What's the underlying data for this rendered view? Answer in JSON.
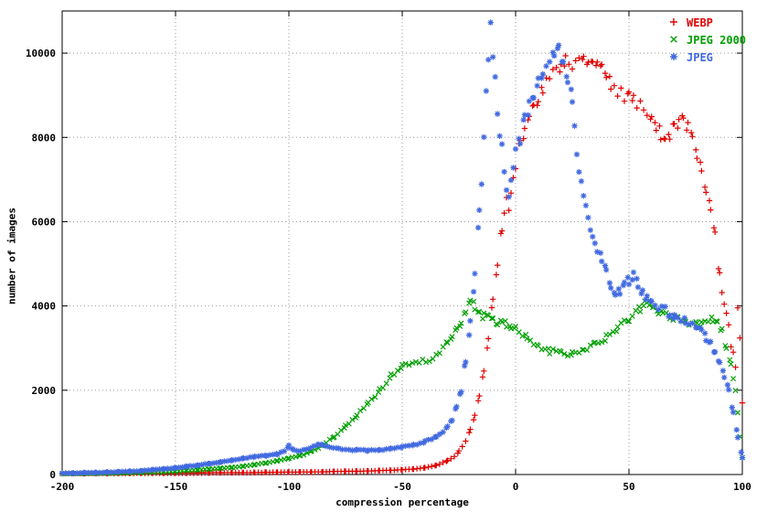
{
  "chart_data": {
    "type": "scatter",
    "title": "",
    "xlabel": "compression percentage",
    "ylabel": "number of images",
    "xlim": [
      -200,
      100
    ],
    "ylim": [
      0,
      11000
    ],
    "xticks": [
      -200,
      -150,
      -100,
      -50,
      0,
      50,
      100
    ],
    "yticks": [
      0,
      2000,
      4000,
      6000,
      8000,
      10000
    ],
    "grid": true,
    "grid_style": "dotted",
    "legend_position": "top-right",
    "series": [
      {
        "name": "WEBP",
        "color": "#e00000",
        "marker": "plus",
        "points": [
          [
            -200,
            25
          ],
          [
            -195,
            26
          ],
          [
            -190,
            27
          ],
          [
            -185,
            28
          ],
          [
            -180,
            29
          ],
          [
            -175,
            30
          ],
          [
            -170,
            31
          ],
          [
            -165,
            32
          ],
          [
            -160,
            33
          ],
          [
            -155,
            34
          ],
          [
            -150,
            35
          ],
          [
            -145,
            36
          ],
          [
            -140,
            38
          ],
          [
            -135,
            40
          ],
          [
            -130,
            42
          ],
          [
            -125,
            44
          ],
          [
            -120,
            46
          ],
          [
            -115,
            48
          ],
          [
            -110,
            50
          ],
          [
            -105,
            52
          ],
          [
            -100,
            55
          ],
          [
            -95,
            58
          ],
          [
            -90,
            62
          ],
          [
            -85,
            66
          ],
          [
            -80,
            70
          ],
          [
            -75,
            75
          ],
          [
            -70,
            80
          ],
          [
            -65,
            85
          ],
          [
            -60,
            90
          ],
          [
            -55,
            100
          ],
          [
            -50,
            110
          ],
          [
            -45,
            130
          ],
          [
            -40,
            165
          ],
          [
            -35,
            220
          ],
          [
            -30,
            330
          ],
          [
            -27,
            430
          ],
          [
            -25,
            550
          ],
          [
            -22,
            780
          ],
          [
            -20,
            1050
          ],
          [
            -18,
            1400
          ],
          [
            -16,
            1900
          ],
          [
            -14,
            2500
          ],
          [
            -12,
            3200
          ],
          [
            -10,
            4100
          ],
          [
            -8,
            5000
          ],
          [
            -6,
            5900
          ],
          [
            -5,
            6300
          ],
          [
            -4,
            6600
          ],
          [
            -3,
            6400
          ],
          [
            -2,
            6800
          ],
          [
            -1,
            7100
          ],
          [
            0,
            7400
          ],
          [
            2,
            7900
          ],
          [
            4,
            8200
          ],
          [
            6,
            8500
          ],
          [
            8,
            8700
          ],
          [
            10,
            8900
          ],
          [
            12,
            9100
          ],
          [
            15,
            9500
          ],
          [
            18,
            9700
          ],
          [
            20,
            9650
          ],
          [
            22,
            9800
          ],
          [
            25,
            9750
          ],
          [
            28,
            9900
          ],
          [
            30,
            9950
          ],
          [
            32,
            9850
          ],
          [
            34,
            9950
          ],
          [
            36,
            9800
          ],
          [
            38,
            9600
          ],
          [
            40,
            9500
          ],
          [
            42,
            9300
          ],
          [
            45,
            9100
          ],
          [
            48,
            9000
          ],
          [
            50,
            9000
          ],
          [
            52,
            8900
          ],
          [
            55,
            8800
          ],
          [
            58,
            8600
          ],
          [
            60,
            8450
          ],
          [
            62,
            8300
          ],
          [
            64,
            8100
          ],
          [
            66,
            7950
          ],
          [
            68,
            8050
          ],
          [
            70,
            8200
          ],
          [
            72,
            8300
          ],
          [
            74,
            8400
          ],
          [
            76,
            8200
          ],
          [
            78,
            7900
          ],
          [
            80,
            7500
          ],
          [
            82,
            7200
          ],
          [
            84,
            6800
          ],
          [
            86,
            6300
          ],
          [
            88,
            5700
          ],
          [
            90,
            4700
          ],
          [
            91,
            4400
          ],
          [
            92,
            4100
          ],
          [
            93,
            3900
          ],
          [
            94,
            3600
          ],
          [
            95,
            3100
          ],
          [
            96,
            2900
          ],
          [
            97,
            2600
          ],
          [
            98,
            3900
          ],
          [
            99,
            3300
          ],
          [
            100,
            1700
          ]
        ]
      },
      {
        "name": "JPEG 2000",
        "color": "#00a000",
        "marker": "cross",
        "points": [
          [
            -200,
            20
          ],
          [
            -195,
            22
          ],
          [
            -190,
            25
          ],
          [
            -185,
            28
          ],
          [
            -180,
            30
          ],
          [
            -175,
            35
          ],
          [
            -170,
            40
          ],
          [
            -165,
            46
          ],
          [
            -160,
            55
          ],
          [
            -155,
            65
          ],
          [
            -150,
            80
          ],
          [
            -145,
            95
          ],
          [
            -140,
            110
          ],
          [
            -135,
            130
          ],
          [
            -130,
            150
          ],
          [
            -125,
            170
          ],
          [
            -120,
            200
          ],
          [
            -115,
            230
          ],
          [
            -110,
            270
          ],
          [
            -105,
            320
          ],
          [
            -100,
            380
          ],
          [
            -95,
            450
          ],
          [
            -90,
            550
          ],
          [
            -85,
            700
          ],
          [
            -80,
            900
          ],
          [
            -75,
            1150
          ],
          [
            -70,
            1400
          ],
          [
            -65,
            1700
          ],
          [
            -60,
            2000
          ],
          [
            -57,
            2200
          ],
          [
            -55,
            2350
          ],
          [
            -52,
            2480
          ],
          [
            -50,
            2550
          ],
          [
            -47,
            2600
          ],
          [
            -44,
            2620
          ],
          [
            -41,
            2680
          ],
          [
            -38,
            2750
          ],
          [
            -35,
            2850
          ],
          [
            -32,
            3000
          ],
          [
            -30,
            3100
          ],
          [
            -28,
            3250
          ],
          [
            -26,
            3400
          ],
          [
            -24,
            3550
          ],
          [
            -22,
            3800
          ],
          [
            -20,
            4050
          ],
          [
            -18,
            4000
          ],
          [
            -16,
            3850
          ],
          [
            -14,
            3750
          ],
          [
            -12,
            3700
          ],
          [
            -10,
            3650
          ],
          [
            -8,
            3600
          ],
          [
            -6,
            3580
          ],
          [
            -4,
            3560
          ],
          [
            -2,
            3540
          ],
          [
            0,
            3500
          ],
          [
            3,
            3350
          ],
          [
            5,
            3250
          ],
          [
            8,
            3100
          ],
          [
            10,
            3000
          ],
          [
            13,
            2950
          ],
          [
            15,
            2930
          ],
          [
            18,
            2900
          ],
          [
            20,
            2890
          ],
          [
            23,
            2880
          ],
          [
            25,
            2890
          ],
          [
            28,
            2920
          ],
          [
            30,
            2950
          ],
          [
            33,
            3020
          ],
          [
            35,
            3080
          ],
          [
            38,
            3150
          ],
          [
            40,
            3250
          ],
          [
            43,
            3380
          ],
          [
            45,
            3480
          ],
          [
            48,
            3600
          ],
          [
            50,
            3700
          ],
          [
            53,
            3850
          ],
          [
            55,
            3950
          ],
          [
            57,
            4050
          ],
          [
            59,
            4000
          ],
          [
            61,
            3900
          ],
          [
            63,
            3850
          ],
          [
            65,
            3800
          ],
          [
            68,
            3750
          ],
          [
            70,
            3700
          ],
          [
            73,
            3650
          ],
          [
            75,
            3620
          ],
          [
            78,
            3580
          ],
          [
            80,
            3560
          ],
          [
            82,
            3580
          ],
          [
            85,
            3650
          ],
          [
            87,
            3700
          ],
          [
            89,
            3600
          ],
          [
            91,
            3400
          ],
          [
            93,
            3000
          ],
          [
            95,
            2600
          ],
          [
            96,
            2300
          ],
          [
            97,
            2000
          ],
          [
            98,
            1500
          ],
          [
            99,
            900
          ],
          [
            100,
            400
          ]
        ]
      },
      {
        "name": "JPEG",
        "color": "#4169e1",
        "marker": "asterisk",
        "points": [
          [
            -200,
            30
          ],
          [
            -195,
            35
          ],
          [
            -190,
            40
          ],
          [
            -185,
            46
          ],
          [
            -180,
            55
          ],
          [
            -175,
            65
          ],
          [
            -170,
            75
          ],
          [
            -165,
            90
          ],
          [
            -160,
            110
          ],
          [
            -155,
            130
          ],
          [
            -150,
            160
          ],
          [
            -145,
            190
          ],
          [
            -140,
            220
          ],
          [
            -135,
            260
          ],
          [
            -130,
            300
          ],
          [
            -125,
            340
          ],
          [
            -120,
            380
          ],
          [
            -115,
            420
          ],
          [
            -110,
            450
          ],
          [
            -105,
            480
          ],
          [
            -102,
            560
          ],
          [
            -100,
            680
          ],
          [
            -98,
            590
          ],
          [
            -95,
            560
          ],
          [
            -92,
            600
          ],
          [
            -89,
            660
          ],
          [
            -87,
            730
          ],
          [
            -85,
            700
          ],
          [
            -82,
            640
          ],
          [
            -78,
            610
          ],
          [
            -75,
            600
          ],
          [
            -70,
            580
          ],
          [
            -65,
            570
          ],
          [
            -60,
            580
          ],
          [
            -55,
            620
          ],
          [
            -50,
            650
          ],
          [
            -45,
            700
          ],
          [
            -40,
            780
          ],
          [
            -37,
            850
          ],
          [
            -35,
            900
          ],
          [
            -32,
            1020
          ],
          [
            -30,
            1150
          ],
          [
            -28,
            1300
          ],
          [
            -26,
            1600
          ],
          [
            -24,
            2000
          ],
          [
            -22,
            2700
          ],
          [
            -20,
            3600
          ],
          [
            -18,
            4700
          ],
          [
            -16,
            6200
          ],
          [
            -15,
            7000
          ],
          [
            -14,
            8000
          ],
          [
            -13,
            9200
          ],
          [
            -12,
            9800
          ],
          [
            -11,
            10750
          ],
          [
            -10,
            9900
          ],
          [
            -9,
            9300
          ],
          [
            -8,
            8600
          ],
          [
            -7,
            8100
          ],
          [
            -6,
            7700
          ],
          [
            -5,
            7200
          ],
          [
            -4,
            6900
          ],
          [
            -3,
            6700
          ],
          [
            -2,
            6900
          ],
          [
            -1,
            7200
          ],
          [
            0,
            7600
          ],
          [
            2,
            8000
          ],
          [
            4,
            8400
          ],
          [
            6,
            8700
          ],
          [
            8,
            9000
          ],
          [
            10,
            9300
          ],
          [
            12,
            9500
          ],
          [
            15,
            9800
          ],
          [
            17,
            10000
          ],
          [
            19,
            10050
          ],
          [
            21,
            9800
          ],
          [
            23,
            9400
          ],
          [
            25,
            8900
          ],
          [
            26,
            8300
          ],
          [
            27,
            7700
          ],
          [
            28,
            7200
          ],
          [
            29,
            6900
          ],
          [
            30,
            6600
          ],
          [
            31,
            6400
          ],
          [
            32,
            6200
          ],
          [
            33,
            5900
          ],
          [
            34,
            5700
          ],
          [
            35,
            5500
          ],
          [
            36,
            5400
          ],
          [
            38,
            5100
          ],
          [
            40,
            4800
          ],
          [
            42,
            4500
          ],
          [
            44,
            4350
          ],
          [
            46,
            4300
          ],
          [
            48,
            4500
          ],
          [
            50,
            4600
          ],
          [
            52,
            4700
          ],
          [
            54,
            4500
          ],
          [
            56,
            4350
          ],
          [
            58,
            4200
          ],
          [
            60,
            4100
          ],
          [
            63,
            4000
          ],
          [
            66,
            3900
          ],
          [
            68,
            3800
          ],
          [
            70,
            3750
          ],
          [
            73,
            3700
          ],
          [
            75,
            3650
          ],
          [
            78,
            3550
          ],
          [
            80,
            3500
          ],
          [
            82,
            3400
          ],
          [
            84,
            3250
          ],
          [
            86,
            3100
          ],
          [
            88,
            2900
          ],
          [
            90,
            2600
          ],
          [
            92,
            2350
          ],
          [
            94,
            2000
          ],
          [
            96,
            1500
          ],
          [
            98,
            900
          ],
          [
            100,
            400
          ]
        ]
      }
    ]
  }
}
